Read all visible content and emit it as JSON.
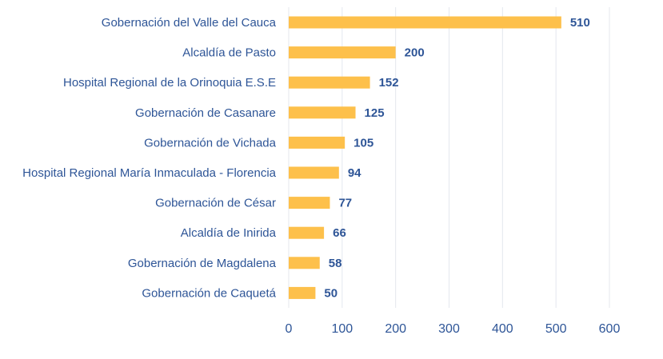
{
  "chart_data": {
    "type": "bar",
    "orientation": "horizontal",
    "title": "",
    "xlabel": "",
    "ylabel": "",
    "xlim": [
      0,
      600
    ],
    "ticks": [
      0,
      100,
      200,
      300,
      400,
      500,
      600
    ],
    "tick_labels": [
      "0",
      "100",
      "200",
      "300",
      "400",
      "500",
      "600"
    ],
    "grid": true,
    "categories": [
      "Gobernación del Valle del Cauca",
      "Alcaldía de Pasto",
      "Hospital Regional de la Orinoquia E.S.E",
      "Gobernación de Casanare",
      "Gobernación de Vichada",
      "Hospital Regional María Inmaculada - Florencia",
      "Gobernación de César",
      "Alcaldía de Inirida",
      "Gobernación de Magdalena",
      "Gobernación de Caquetá"
    ],
    "values": [
      510,
      200,
      152,
      125,
      105,
      94,
      77,
      66,
      58,
      50
    ],
    "value_labels": [
      "510",
      "200",
      "152",
      "125",
      "105",
      "94",
      "77",
      "66",
      "58",
      "50"
    ],
    "colors": {
      "bar": "#fdc04b",
      "text": "#2e5597",
      "grid": "#e4e7ee"
    }
  }
}
